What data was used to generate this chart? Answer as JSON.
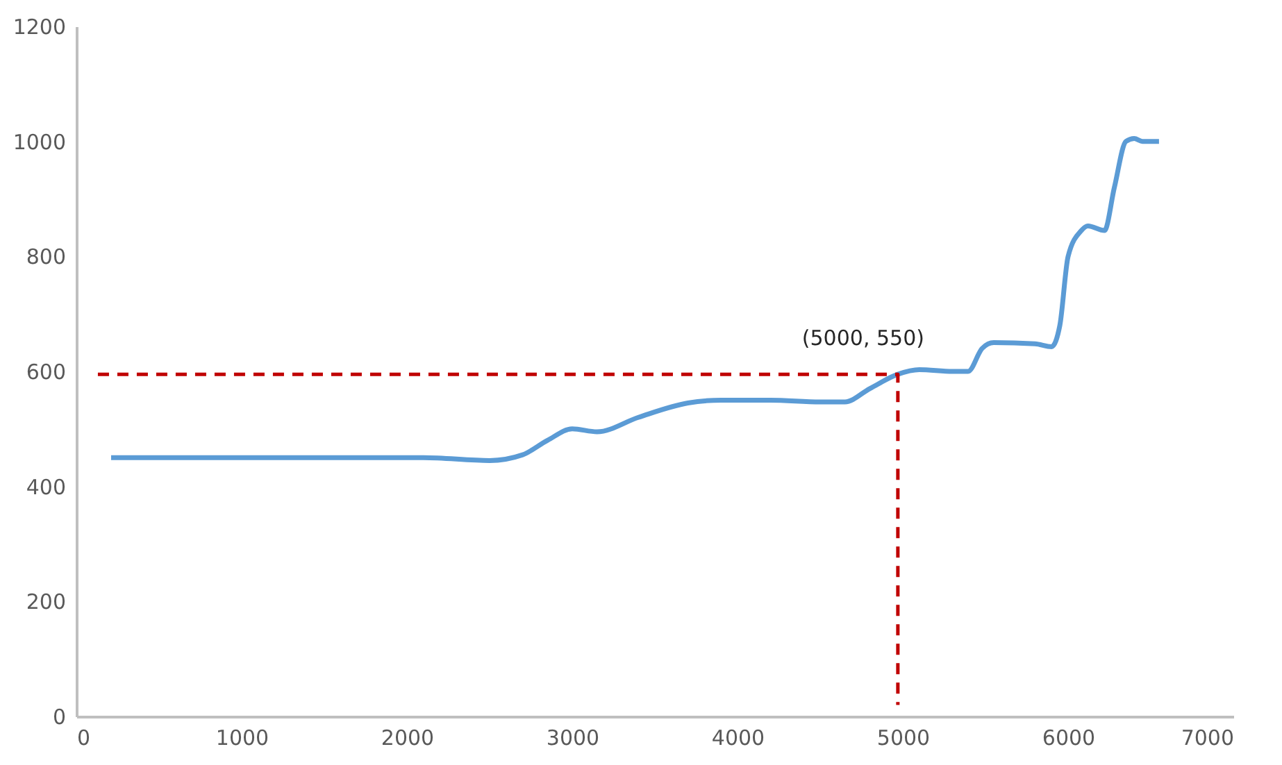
{
  "chart_data": {
    "type": "line",
    "xlim": [
      0,
      7000
    ],
    "xticks": [
      0,
      1000,
      2000,
      3000,
      4000,
      5000,
      6000,
      7000
    ],
    "ylim": [
      0,
      1200
    ],
    "yticks": [
      0,
      200,
      400,
      600,
      800,
      1000,
      1200
    ],
    "grid": false,
    "line_style": "solid",
    "marker": "none",
    "series": [
      {
        "color": "#5b9bd5",
        "x": [
          210,
          800,
          1500,
          2100,
          2500,
          2700,
          2850,
          3000,
          3150,
          3400,
          3700,
          3900,
          4200,
          4500,
          4650,
          4800,
          4970,
          5100,
          5300,
          5395,
          5480,
          5550,
          5800,
          5900,
          5950,
          6000,
          6080,
          6120,
          6220,
          6280,
          6350,
          6400,
          6450,
          6550
        ],
        "values": [
          450,
          450,
          450,
          450,
          445,
          455,
          480,
          500,
          495,
          520,
          545,
          550,
          550,
          547,
          547,
          570,
          595,
          603,
          600,
          600,
          640,
          650,
          648,
          643,
          680,
          800,
          845,
          853,
          845,
          920,
          1000,
          1005,
          1000,
          1000
        ]
      },
      {
        "color": "#c00000",
        "line_style": "dashed",
        "x": [
          130,
          4970,
          4970
        ],
        "values": [
          595,
          595,
          20
        ]
      }
    ],
    "annotations": [
      {
        "text": "(5000, 550)",
        "x": 4970,
        "y": 595
      }
    ]
  }
}
